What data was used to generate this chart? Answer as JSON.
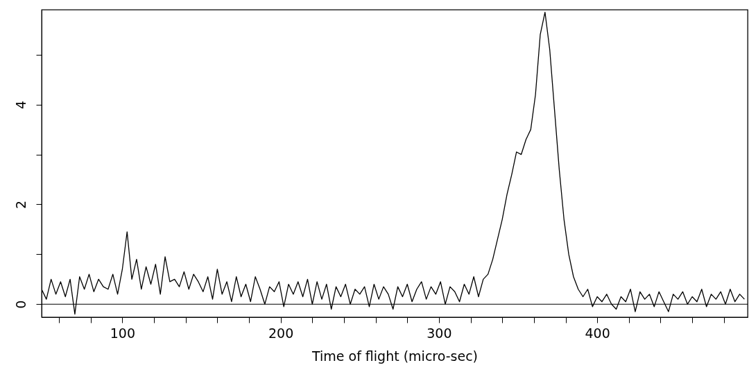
{
  "chart_data": {
    "type": "line",
    "xlabel": "Time of flight (micro-sec)",
    "x": [
      49,
      52,
      55,
      58,
      61,
      64,
      67,
      70,
      73,
      76,
      79,
      82,
      85,
      88,
      91,
      94,
      97,
      100,
      103,
      106,
      109,
      112,
      115,
      118,
      121,
      124,
      127,
      130,
      133,
      136,
      139,
      142,
      145,
      148,
      151,
      154,
      157,
      160,
      163,
      166,
      169,
      172,
      175,
      178,
      181,
      184,
      187,
      190,
      193,
      196,
      199,
      202,
      205,
      208,
      211,
      214,
      217,
      220,
      223,
      226,
      229,
      232,
      235,
      238,
      241,
      244,
      247,
      250,
      253,
      256,
      259,
      262,
      265,
      268,
      271,
      274,
      277,
      280,
      283,
      286,
      289,
      292,
      295,
      298,
      301,
      304,
      307,
      310,
      313,
      316,
      319,
      322,
      325,
      328,
      331,
      334,
      337,
      340,
      343,
      346,
      349,
      352,
      355,
      358,
      361,
      364,
      367,
      370,
      373,
      376,
      379,
      382,
      385,
      388,
      391,
      394,
      397,
      400,
      403,
      406,
      409,
      412,
      415,
      418,
      421,
      424,
      427,
      430,
      433,
      436,
      439,
      442,
      445,
      448,
      451,
      454,
      457,
      460,
      463,
      466,
      469,
      472,
      475,
      478,
      481,
      484,
      487,
      490,
      493
    ],
    "series": [
      {
        "color": "#000000",
        "values": [
          0.3,
          0.1,
          0.5,
          0.2,
          0.45,
          0.15,
          0.5,
          -0.2,
          0.55,
          0.3,
          0.6,
          0.25,
          0.5,
          0.35,
          0.3,
          0.6,
          0.2,
          0.7,
          1.45,
          0.5,
          0.9,
          0.3,
          0.75,
          0.4,
          0.8,
          0.2,
          0.95,
          0.45,
          0.5,
          0.35,
          0.65,
          0.3,
          0.6,
          0.45,
          0.25,
          0.55,
          0.1,
          0.7,
          0.2,
          0.45,
          0.05,
          0.55,
          0.15,
          0.4,
          0.05,
          0.55,
          0.3,
          0.0,
          0.35,
          0.25,
          0.45,
          -0.05,
          0.4,
          0.2,
          0.45,
          0.15,
          0.5,
          0.0,
          0.45,
          0.1,
          0.4,
          -0.1,
          0.35,
          0.15,
          0.4,
          0.0,
          0.3,
          0.2,
          0.35,
          -0.05,
          0.4,
          0.1,
          0.35,
          0.2,
          -0.1,
          0.35,
          0.15,
          0.4,
          0.05,
          0.3,
          0.45,
          0.1,
          0.35,
          0.2,
          0.45,
          0.0,
          0.35,
          0.25,
          0.05,
          0.4,
          0.2,
          0.55,
          0.15,
          0.5,
          0.6,
          0.9,
          1.3,
          1.7,
          2.2,
          2.6,
          3.05,
          3.0,
          3.3,
          3.5,
          4.2,
          5.4,
          5.85,
          5.1,
          3.9,
          2.7,
          1.7,
          1.0,
          0.55,
          0.3,
          0.15,
          0.3,
          -0.05,
          0.15,
          0.05,
          0.2,
          0.0,
          -0.1,
          0.15,
          0.05,
          0.3,
          -0.15,
          0.25,
          0.1,
          0.2,
          -0.05,
          0.25,
          0.05,
          -0.15,
          0.2,
          0.1,
          0.25,
          0.0,
          0.15,
          0.05,
          0.3,
          -0.05,
          0.2,
          0.1,
          0.25,
          0.0,
          0.3,
          0.05,
          0.2,
          0.1
        ]
      }
    ],
    "xlim": [
      49,
      495
    ],
    "xticks": [
      {
        "value": 60,
        "label": null
      },
      {
        "value": 80,
        "label": null
      },
      100,
      {
        "value": 120,
        "label": null
      },
      {
        "value": 140,
        "label": null
      },
      {
        "value": 160,
        "label": null
      },
      {
        "value": 180,
        "label": null
      },
      200,
      {
        "value": 220,
        "label": null
      },
      {
        "value": 240,
        "label": null
      },
      {
        "value": 260,
        "label": null
      },
      {
        "value": 280,
        "label": null
      },
      300,
      {
        "value": 320,
        "label": null
      },
      {
        "value": 340,
        "label": null
      },
      {
        "value": 360,
        "label": null
      },
      {
        "value": 380,
        "label": null
      },
      400,
      {
        "value": 420,
        "label": null
      },
      {
        "value": 440,
        "label": null
      },
      {
        "value": 460,
        "label": null
      },
      {
        "value": 480,
        "label": null
      }
    ],
    "ylim": [
      -0.26,
      5.9
    ],
    "yticks": [
      0,
      {
        "value": 1,
        "label": null
      },
      2,
      {
        "value": 3,
        "label": null
      },
      4,
      {
        "value": 5,
        "label": null
      }
    ],
    "ref_lines": [
      {
        "axis": "y",
        "value": 0,
        "color": "#000000"
      }
    ],
    "marker": "none",
    "line_style": "solid"
  }
}
